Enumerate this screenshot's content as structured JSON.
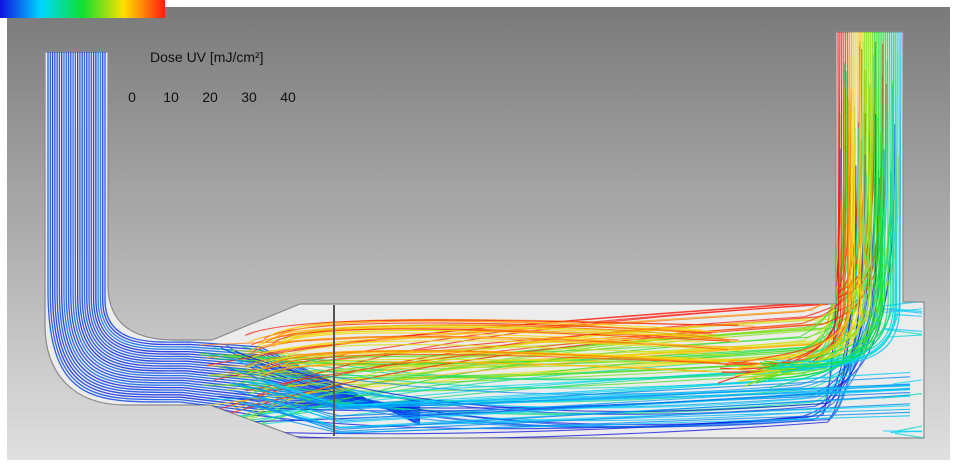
{
  "legend": {
    "title": "Dose UV [mJ/cm²]",
    "ticks": [
      {
        "value": 0,
        "label": "0"
      },
      {
        "value": 10,
        "label": "10"
      },
      {
        "value": 20,
        "label": "20"
      },
      {
        "value": 30,
        "label": "30"
      },
      {
        "value": 40,
        "label": "40"
      }
    ],
    "range": [
      0,
      40
    ],
    "colors": {
      "stop_0": "#1010e0",
      "stop_10": "#00d8ff",
      "stop_20": "#10e030",
      "stop_30": "#ffe000",
      "stop_40": "#ff1a10"
    }
  },
  "scene": {
    "background_top": "#7a7a7a",
    "background_bottom": "#e0e0e0",
    "vessel_fill": "#ececec",
    "vessel_outline": "#8a8a8a",
    "lamp_color": "#555555"
  }
}
